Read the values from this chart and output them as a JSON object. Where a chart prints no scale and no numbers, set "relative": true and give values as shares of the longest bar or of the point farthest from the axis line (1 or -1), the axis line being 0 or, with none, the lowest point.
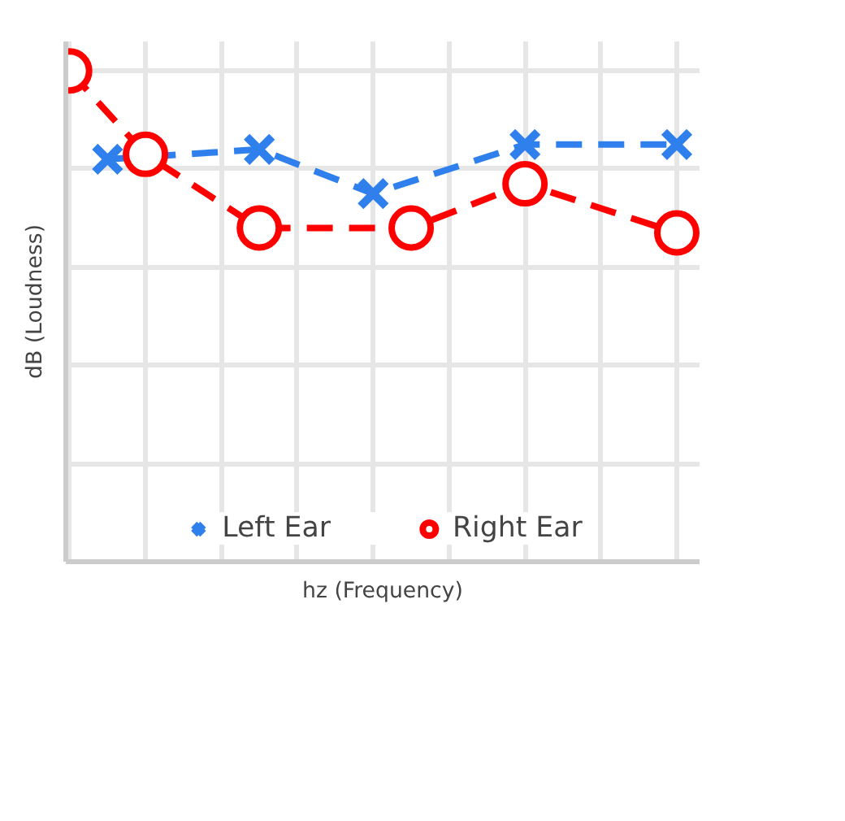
{
  "chart_data": {
    "type": "line",
    "relative": true,
    "xlabel": "hz (Frequency)",
    "ylabel": "dB (Loudness)",
    "categories": [
      null,
      null,
      null,
      null,
      null,
      null,
      null,
      null,
      null,
      null,
      null,
      null,
      null,
      null,
      null,
      null,
      null
    ],
    "tick_labels": false,
    "grid": true,
    "legend": "bottom",
    "series": [
      {
        "name": "Left Ear",
        "color": "#2f80ed",
        "marker": "cross",
        "line_style": "dashed",
        "values": [
          null,
          0.82,
          null,
          null,
          null,
          0.84,
          null,
          null,
          0.75,
          null,
          null,
          null,
          0.85,
          null,
          null,
          null,
          0.85
        ]
      },
      {
        "name": "Right Ear",
        "color": "#ff0000",
        "marker": "circle",
        "line_style": "dashed",
        "values": [
          1,
          null,
          0.83,
          null,
          null,
          0.68,
          null,
          null,
          null,
          0.68,
          null,
          null,
          0.77,
          null,
          null,
          null,
          0.67
        ]
      }
    ]
  }
}
